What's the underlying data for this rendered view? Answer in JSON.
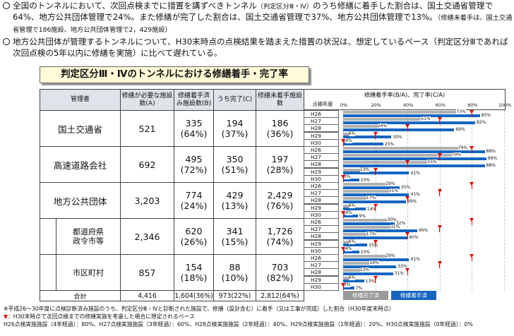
{
  "bullets": [
    {
      "main1": "全国のトンネルにおいて、次回点検までに措置を講ずべきトンネル",
      "small1": "（判定区分Ⅲ・Ⅳ）",
      "main2": "のうち修繕に着手した割合は、国土交通省管理で64%、地方公共団体管理で24%。また修繕が完了した割合は、国土交通省管理で37%、地方公共団体管理で13%。",
      "small2": "（修繕未着手は、国土交通省管理で186施設、地方公共団体管理で2，429施設）"
    },
    {
      "main1": "地方公共団体が管理するトンネルについて、H30末時点の点検結果を踏まえた措置の状況は、想定しているペース（判定区分Ⅲであれば次回点検の5年以内に修繕を実施）に比べて遅れている。",
      "small1": "",
      "main2": "",
      "small2": ""
    }
  ],
  "title": "判定区分Ⅲ・Ⅳのトンネルにおける修繕着手・完了率",
  "header": {
    "manager": "管理者",
    "needs": "修繕が必要な施設数(A)",
    "started": "修繕着手済み施設数(B)",
    "completed": "うち完了(C)",
    "not_started": "修繕未着手施設数",
    "inspection_year": "点検年度",
    "graph_title": "修繕着手率(B/A)、完了率(C/A)",
    "ticks": [
      "0%",
      "20%",
      "40%",
      "60%",
      "80%",
      "100%"
    ]
  },
  "rows": [
    {
      "name": "国土交通省",
      "a": "521",
      "b": "335",
      "b_pct": "(64%)",
      "c": "194",
      "c_pct": "(37%)",
      "d": "186",
      "d_pct": "(36%)"
    },
    {
      "name": "高速道路会社",
      "a": "692",
      "b": "495",
      "b_pct": "(72%)",
      "c": "350",
      "c_pct": "(51%)",
      "d": "197",
      "d_pct": "(28%)"
    },
    {
      "name": "地方公共団体",
      "a": "3,203",
      "b": "774",
      "b_pct": "(24%)",
      "c": "429",
      "c_pct": "(13%)",
      "d": "2,429",
      "d_pct": "(76%)"
    },
    {
      "name": "都道府県\n政令市等",
      "a": "2,346",
      "b": "620",
      "b_pct": "(26%)",
      "c": "341",
      "c_pct": "(15%)",
      "d": "1,726",
      "d_pct": "(74%)"
    },
    {
      "name": "市区町村",
      "a": "857",
      "b": "154",
      "b_pct": "(18%)",
      "c": "88",
      "c_pct": "(10%)",
      "d": "703",
      "d_pct": "(82%)"
    }
  ],
  "total": {
    "name": "合計",
    "a": "4,416",
    "b": "1,604(36%)",
    "c": "973(22%)",
    "d": "2,812(64%)"
  },
  "years": [
    "H26",
    "H27",
    "H28",
    "H29",
    "H30"
  ],
  "chart_data": {
    "type": "bar",
    "title": "修繕着手率(B/A)、完了率(C/A)",
    "categories": [
      "H26",
      "H27",
      "H28",
      "H29",
      "H30"
    ],
    "xlim": [
      0,
      100
    ],
    "series_names": [
      "修繕完了済",
      "修繕着手済"
    ],
    "groups": [
      {
        "name": "国土交通省",
        "completed": [
          73,
          51,
          24,
          6,
          4
        ],
        "started": [
          85,
          82,
          69,
          30,
          25
        ]
      },
      {
        "name": "高速道路会社",
        "completed": [
          74,
          70,
          55,
          13,
          3
        ],
        "started": [
          88,
          89,
          88,
          41,
          10
        ]
      },
      {
        "name": "地方公共団体",
        "completed": [
          29,
          31,
          17,
          6,
          4
        ],
        "started": [
          35,
          41,
          39,
          14,
          9
        ]
      },
      {
        "name": "都道府県政令市等",
        "completed": [
          30,
          32,
          17,
          6,
          4
        ],
        "started": [
          32,
          46,
          40,
          15,
          10
        ]
      },
      {
        "name": "市区町村",
        "completed": [
          29,
          19,
          13,
          6,
          3
        ],
        "started": [
          41,
          33,
          31,
          13,
          7
        ]
      }
    ],
    "expected_pace": [
      80,
      60,
      40,
      20,
      0
    ]
  },
  "legend": {
    "completed": "修繕完了済",
    "started": "修繕着手済"
  },
  "colors": {
    "started": "#1565c0",
    "completed": "#b0b0b0",
    "expected": "#d00000"
  },
  "notes": {
    "n1": "※平成26～30年度に点検診断済み施設のうち、判定区分Ⅲ・Ⅳと診断された施設で、修繕（設計含む）に着手（又は工事が完成）した割合（H30年度末時点）",
    "n2": "：H30末時点で次回点検までの修繕実施を考慮した場合に想定されるペース",
    "n3": "H26点検実施施設（4年経過）：80%、H27点検実施施設（3年経過）：60%、H28点検実施施設（2年経過）：40%、H29点検実施施設（1年経過）：20%、H30点検実施施設（0年経過）：0%"
  }
}
